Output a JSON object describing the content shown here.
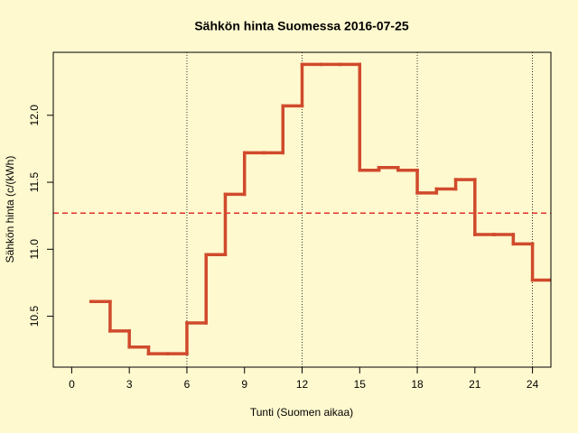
{
  "chart_data": {
    "type": "step",
    "title": "Sähkön hinta Suomessa 2016-07-25",
    "x_label": "Tunti (Suomen aikaa)",
    "y_label": "Sähkön hinta (c/(kWh)",
    "x": [
      1,
      2,
      3,
      4,
      5,
      6,
      7,
      8,
      9,
      10,
      11,
      12,
      13,
      14,
      15,
      16,
      17,
      18,
      19,
      20,
      21,
      22,
      23,
      24
    ],
    "series": [
      {
        "color": "#d04a2c",
        "values": [
          10.61,
          10.39,
          10.27,
          10.22,
          10.22,
          10.45,
          10.96,
          11.41,
          11.72,
          11.72,
          12.07,
          12.38,
          12.38,
          12.38,
          11.59,
          11.61,
          11.59,
          11.42,
          11.45,
          11.52,
          11.11,
          11.11,
          11.04,
          10.77
        ]
      }
    ],
    "mean": 11.27,
    "mean_color": "#e0312b",
    "vlines": [
      6,
      12,
      18,
      24
    ],
    "xlim": [
      -0.96,
      24.96
    ],
    "xticks": [
      0,
      3,
      6,
      9,
      12,
      15,
      18,
      21,
      24
    ],
    "ylim": [
      10.12,
      12.47
    ],
    "yticks": [
      10.5,
      {
        "value": 11.0,
        "label": "11.0"
      },
      11.5,
      {
        "value": 12.0,
        "label": "12.0"
      }
    ]
  }
}
